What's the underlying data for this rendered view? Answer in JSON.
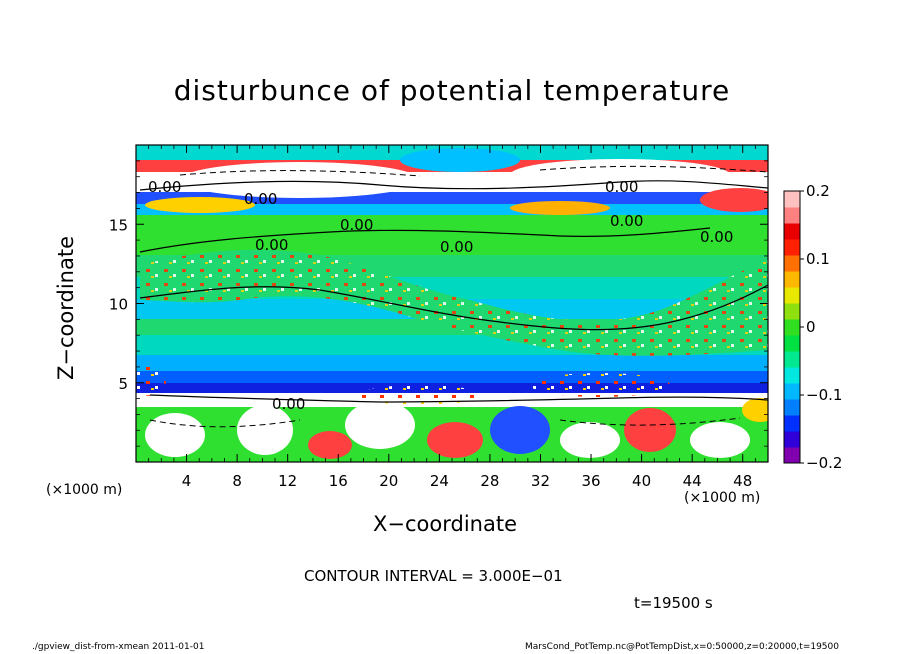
{
  "chart_data": {
    "type": "heatmap",
    "title": "disturbunce of potential temperature",
    "xlabel": "X−coordinate",
    "ylabel": "Z−coordinate",
    "x_unit_label_left": "(×1000 m)",
    "x_unit_label_right": "(×1000 m)",
    "xlim": [
      0,
      50
    ],
    "ylim": [
      0,
      20
    ],
    "x_ticks": [
      4,
      8,
      12,
      16,
      20,
      24,
      28,
      32,
      36,
      40,
      44,
      48
    ],
    "y_ticks": [
      5,
      10,
      15
    ],
    "colorbar": {
      "min": -0.2,
      "max": 0.2,
      "tick_values": [
        0.2,
        0.1,
        0,
        -0.1,
        -0.2
      ],
      "tick_labels": [
        "0.2",
        "0.1",
        "0",
        "−0.1",
        "−0.2"
      ],
      "colors": [
        "#8000b0",
        "#3000d8",
        "#0030ff",
        "#0080ff",
        "#00b8ff",
        "#00e8e0",
        "#00e890",
        "#00e040",
        "#30e020",
        "#90e010",
        "#e8e800",
        "#ffb800",
        "#ff7000",
        "#ff2000",
        "#e80000",
        "#ff8080",
        "#ffc0c0"
      ]
    },
    "contour_labels": [
      "0.00",
      "0.00",
      "0.00",
      "0.00",
      "0.00",
      "0.00",
      "0.00",
      "0.00",
      "0.00"
    ],
    "grid": false
  },
  "contour_interval": "CONTOUR INTERVAL = 3.000E−01",
  "time_label": "t=19500 s",
  "footer": {
    "left": "./gpview_dist-from-xmean   2011-01-01",
    "right": "MarsCond_PotTemp.nc@PotTempDist,x=0:50000,z=0:20000,t=19500"
  }
}
